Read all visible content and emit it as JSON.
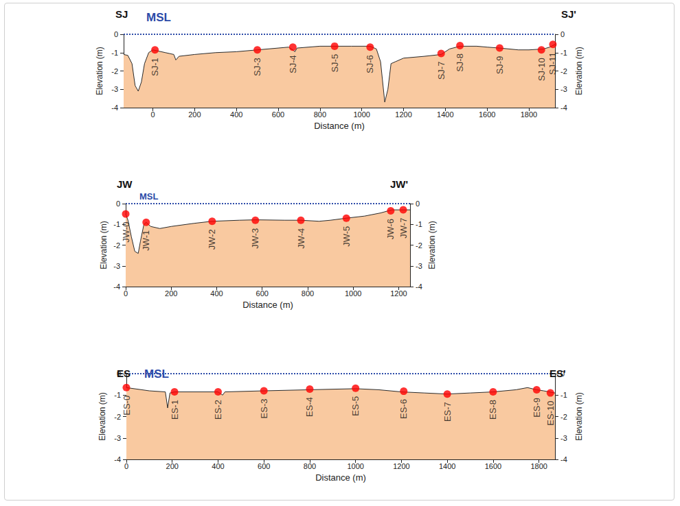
{
  "chart_data": [
    {
      "type": "line",
      "title": "SJ",
      "end_label": "SJ'",
      "x_label": "Distance (m)",
      "y_label": "Elevation (m)",
      "xlim": [
        -140,
        1925
      ],
      "xticks": [
        0,
        200,
        400,
        600,
        800,
        1000,
        1200,
        1400,
        1600,
        1800
      ],
      "ylim": [
        -4,
        0
      ],
      "yticks": [
        -4,
        -3,
        -2,
        -1,
        0
      ],
      "grid": false,
      "reference": {
        "label": "MSL",
        "value": 0,
        "color": "#2b4aa8",
        "line_style": "dotted"
      },
      "profile": {
        "color": "#f9c9a0",
        "x": [
          -140,
          -120,
          -100,
          -85,
          -70,
          -55,
          -40,
          -20,
          0,
          20,
          60,
          100,
          110,
          125,
          200,
          300,
          400,
          500,
          600,
          650,
          670,
          680,
          690,
          800,
          870,
          950,
          1040,
          1070,
          1090,
          1110,
          1125,
          1140,
          1160,
          1200,
          1300,
          1380,
          1420,
          1470,
          1550,
          1600,
          1660,
          1750,
          1800,
          1870,
          1900,
          1925
        ],
        "values": [
          -1.1,
          -1.15,
          -1.6,
          -2.8,
          -3.1,
          -2.6,
          -1.6,
          -1.0,
          -0.85,
          -0.9,
          -1.0,
          -1.1,
          -1.4,
          -1.2,
          -1.1,
          -1.0,
          -0.95,
          -0.85,
          -0.75,
          -0.7,
          -0.85,
          -0.95,
          -0.75,
          -0.65,
          -0.65,
          -0.65,
          -0.65,
          -0.8,
          -1.5,
          -3.7,
          -3.0,
          -1.6,
          -1.5,
          -1.3,
          -1.2,
          -1.1,
          -0.8,
          -0.65,
          -0.65,
          -0.7,
          -0.75,
          -0.85,
          -0.85,
          -0.8,
          -0.7,
          -0.55
        ]
      },
      "stations": {
        "color": "#ff0000",
        "marker": "circle",
        "labels": [
          "SJ-1",
          "SJ-3",
          "SJ-4",
          "SJ-5",
          "SJ-6",
          "SJ-7",
          "SJ-8",
          "SJ-9",
          "SJ-10",
          "SJ-11"
        ],
        "x": [
          10,
          500,
          670,
          870,
          1040,
          1380,
          1470,
          1660,
          1860,
          1915
        ],
        "values": [
          -0.85,
          -0.85,
          -0.7,
          -0.65,
          -0.7,
          -1.05,
          -0.62,
          -0.75,
          -0.85,
          -0.55
        ]
      }
    },
    {
      "type": "line",
      "title": "JW",
      "end_label": "JW'",
      "x_label": "Distance (m)",
      "y_label": "Elevation (m)",
      "xlim": [
        0,
        1250
      ],
      "xticks": [
        0,
        200,
        400,
        600,
        800,
        1000,
        1200
      ],
      "ylim": [
        -4,
        0
      ],
      "yticks": [
        -4,
        -3,
        -2,
        -1,
        0
      ],
      "grid": false,
      "reference": {
        "label": "MSL",
        "value": 0,
        "color": "#2b4aa8",
        "line_style": "dotted"
      },
      "profile": {
        "color": "#f9c9a0",
        "x": [
          0,
          10,
          25,
          40,
          55,
          65,
          80,
          90,
          110,
          150,
          200,
          300,
          380,
          500,
          570,
          700,
          770,
          850,
          900,
          970,
          1050,
          1120,
          1170,
          1220,
          1250
        ],
        "values": [
          -0.5,
          -0.8,
          -1.6,
          -2.3,
          -2.4,
          -1.8,
          -1.0,
          -0.9,
          -1.1,
          -1.2,
          -1.1,
          -0.95,
          -0.85,
          -0.8,
          -0.78,
          -0.8,
          -0.8,
          -0.85,
          -0.8,
          -0.7,
          -0.6,
          -0.45,
          -0.3,
          -0.3,
          -0.3
        ]
      },
      "stations": {
        "color": "#ff0000",
        "marker": "circle",
        "labels": [
          "JW-0",
          "JW-1",
          "JW-2",
          "JW-3",
          "JW-4",
          "JW-5",
          "JW-6",
          "JW-7"
        ],
        "x": [
          0,
          90,
          380,
          570,
          770,
          970,
          1165,
          1220
        ],
        "values": [
          -0.5,
          -0.9,
          -0.85,
          -0.8,
          -0.8,
          -0.7,
          -0.35,
          -0.3
        ]
      }
    },
    {
      "type": "line",
      "title": "ES",
      "end_label": "ES'",
      "x_label": "Distance (m)",
      "y_label": "Elevation (m)",
      "xlim": [
        0,
        1870
      ],
      "xticks": [
        0,
        200,
        400,
        600,
        800,
        1000,
        1200,
        1400,
        1600,
        1800
      ],
      "ylim": [
        -4,
        0
      ],
      "yticks": [
        -4,
        -3,
        -2,
        -1,
        0
      ],
      "grid": false,
      "reference": {
        "label": "MSL",
        "value": 0,
        "color": "#2b4aa8",
        "line_style": "dotted"
      },
      "profile": {
        "color": "#f9c9a0",
        "x": [
          0,
          100,
          170,
          180,
          190,
          210,
          400,
          420,
          430,
          600,
          800,
          1000,
          1100,
          1200,
          1300,
          1400,
          1500,
          1600,
          1700,
          1750,
          1790,
          1820,
          1870
        ],
        "values": [
          -0.65,
          -0.8,
          -0.85,
          -1.6,
          -0.9,
          -0.85,
          -0.85,
          -1.0,
          -0.85,
          -0.8,
          -0.75,
          -0.7,
          -0.75,
          -0.85,
          -0.9,
          -0.95,
          -0.9,
          -0.85,
          -0.75,
          -0.65,
          -0.75,
          -0.8,
          -0.9
        ]
      },
      "stations": {
        "color": "#ff0000",
        "marker": "circle",
        "labels": [
          "ES-0",
          "ES-1",
          "ES-2",
          "ES-3",
          "ES-4",
          "ES-5",
          "ES-6",
          "ES-7",
          "ES-8",
          "ES-9",
          "ES-10"
        ],
        "x": [
          0,
          210,
          400,
          600,
          800,
          1000,
          1210,
          1400,
          1600,
          1790,
          1850
        ],
        "values": [
          -0.65,
          -0.85,
          -0.85,
          -0.8,
          -0.72,
          -0.68,
          -0.82,
          -0.95,
          -0.85,
          -0.75,
          -0.9
        ]
      }
    }
  ]
}
